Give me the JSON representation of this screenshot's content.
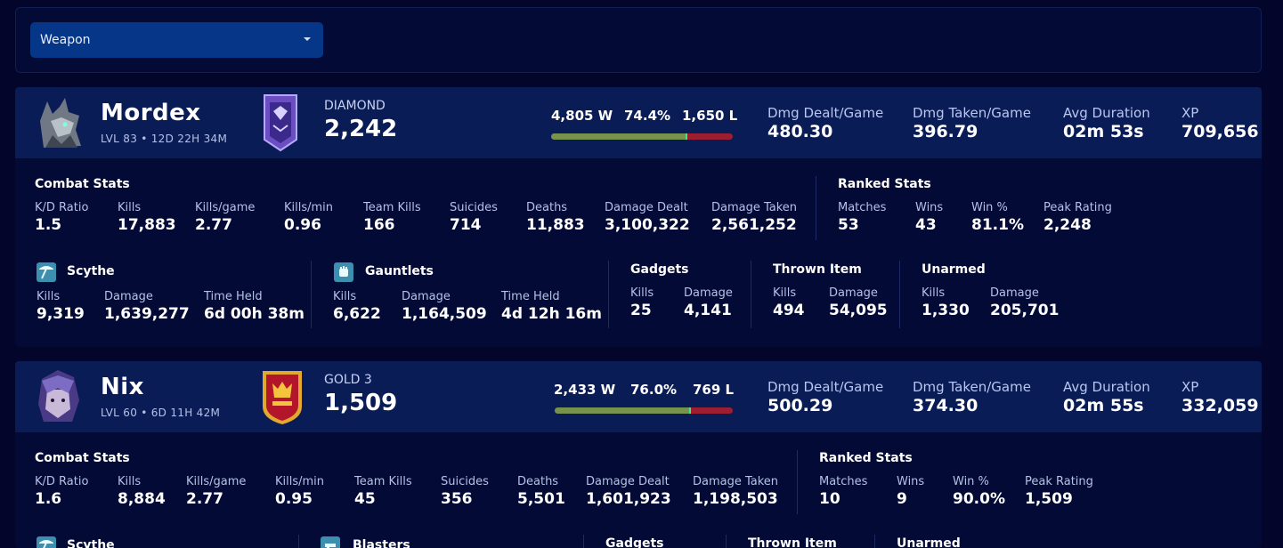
{
  "filter": {
    "selected": "Weapon"
  },
  "players": [
    {
      "name": "Mordex",
      "level_line": "LVL 83 • 12D 22H 34M",
      "rank": "DIAMOND",
      "rating": "2,242",
      "wins": "4,805 W",
      "winrate": "74.4%",
      "losses": "1,650 L",
      "win_fraction": 0.744,
      "header_stats": [
        {
          "label": "Dmg Dealt/Game",
          "value": "480.30"
        },
        {
          "label": "Dmg Taken/Game",
          "value": "396.79"
        },
        {
          "label": "Avg Duration",
          "value": "02m 53s"
        },
        {
          "label": "XP",
          "value": "709,656"
        }
      ],
      "combat_title": "Combat Stats",
      "combat": [
        {
          "label": "K/D Ratio",
          "value": "1.5"
        },
        {
          "label": "Kills",
          "value": "17,883"
        },
        {
          "label": "Kills/game",
          "value": "2.77"
        },
        {
          "label": "Kills/min",
          "value": "0.96"
        },
        {
          "label": "Team Kills",
          "value": "166"
        },
        {
          "label": "Suicides",
          "value": "714"
        },
        {
          "label": "Deaths",
          "value": "11,883"
        },
        {
          "label": "Damage Dealt",
          "value": "3,100,322"
        },
        {
          "label": "Damage Taken",
          "value": "2,561,252"
        }
      ],
      "ranked_title": "Ranked Stats",
      "ranked": [
        {
          "label": "Matches",
          "value": "53"
        },
        {
          "label": "Wins",
          "value": "43"
        },
        {
          "label": "Win %",
          "value": "81.1%"
        },
        {
          "label": "Peak Rating",
          "value": "2,248"
        }
      ],
      "weapons": [
        {
          "name": "Scythe",
          "icon": "scythe-icon",
          "stats": [
            {
              "label": "Kills",
              "value": "9,319"
            },
            {
              "label": "Damage",
              "value": "1,639,277"
            },
            {
              "label": "Time Held",
              "value": "6d 00h 38m"
            }
          ]
        },
        {
          "name": "Gauntlets",
          "icon": "gauntlets-icon",
          "stats": [
            {
              "label": "Kills",
              "value": "6,622"
            },
            {
              "label": "Damage",
              "value": "1,164,509"
            },
            {
              "label": "Time Held",
              "value": "4d 12h 16m"
            }
          ]
        }
      ],
      "extras": [
        {
          "name": "Gadgets",
          "stats": [
            {
              "label": "Kills",
              "value": "25"
            },
            {
              "label": "Damage",
              "value": "4,141"
            }
          ]
        },
        {
          "name": "Thrown Item",
          "stats": [
            {
              "label": "Kills",
              "value": "494"
            },
            {
              "label": "Damage",
              "value": "54,095"
            }
          ]
        },
        {
          "name": "Unarmed",
          "stats": [
            {
              "label": "Kills",
              "value": "1,330"
            },
            {
              "label": "Damage",
              "value": "205,701"
            }
          ]
        }
      ]
    },
    {
      "name": "Nix",
      "level_line": "LVL 60 • 6D 11H 42M",
      "rank": "GOLD 3",
      "rating": "1,509",
      "wins": "2,433 W",
      "winrate": "76.0%",
      "losses": "769 L",
      "win_fraction": 0.76,
      "header_stats": [
        {
          "label": "Dmg Dealt/Game",
          "value": "500.29"
        },
        {
          "label": "Dmg Taken/Game",
          "value": "374.30"
        },
        {
          "label": "Avg Duration",
          "value": "02m 55s"
        },
        {
          "label": "XP",
          "value": "332,059"
        }
      ],
      "combat_title": "Combat Stats",
      "combat": [
        {
          "label": "K/D Ratio",
          "value": "1.6"
        },
        {
          "label": "Kills",
          "value": "8,884"
        },
        {
          "label": "Kills/game",
          "value": "2.77"
        },
        {
          "label": "Kills/min",
          "value": "0.95"
        },
        {
          "label": "Team Kills",
          "value": "45"
        },
        {
          "label": "Suicides",
          "value": "356"
        },
        {
          "label": "Deaths",
          "value": "5,501"
        },
        {
          "label": "Damage Dealt",
          "value": "1,601,923"
        },
        {
          "label": "Damage Taken",
          "value": "1,198,503"
        }
      ],
      "ranked_title": "Ranked Stats",
      "ranked": [
        {
          "label": "Matches",
          "value": "10"
        },
        {
          "label": "Wins",
          "value": "9"
        },
        {
          "label": "Win %",
          "value": "90.0%"
        },
        {
          "label": "Peak Rating",
          "value": "1,509"
        }
      ],
      "weapons": [
        {
          "name": "Scythe",
          "icon": "scythe-icon"
        },
        {
          "name": "Blasters",
          "icon": "blasters-icon"
        }
      ],
      "extras": [
        {
          "name": "Gadgets"
        },
        {
          "name": "Thrown Item"
        },
        {
          "name": "Unarmed"
        }
      ]
    }
  ]
}
